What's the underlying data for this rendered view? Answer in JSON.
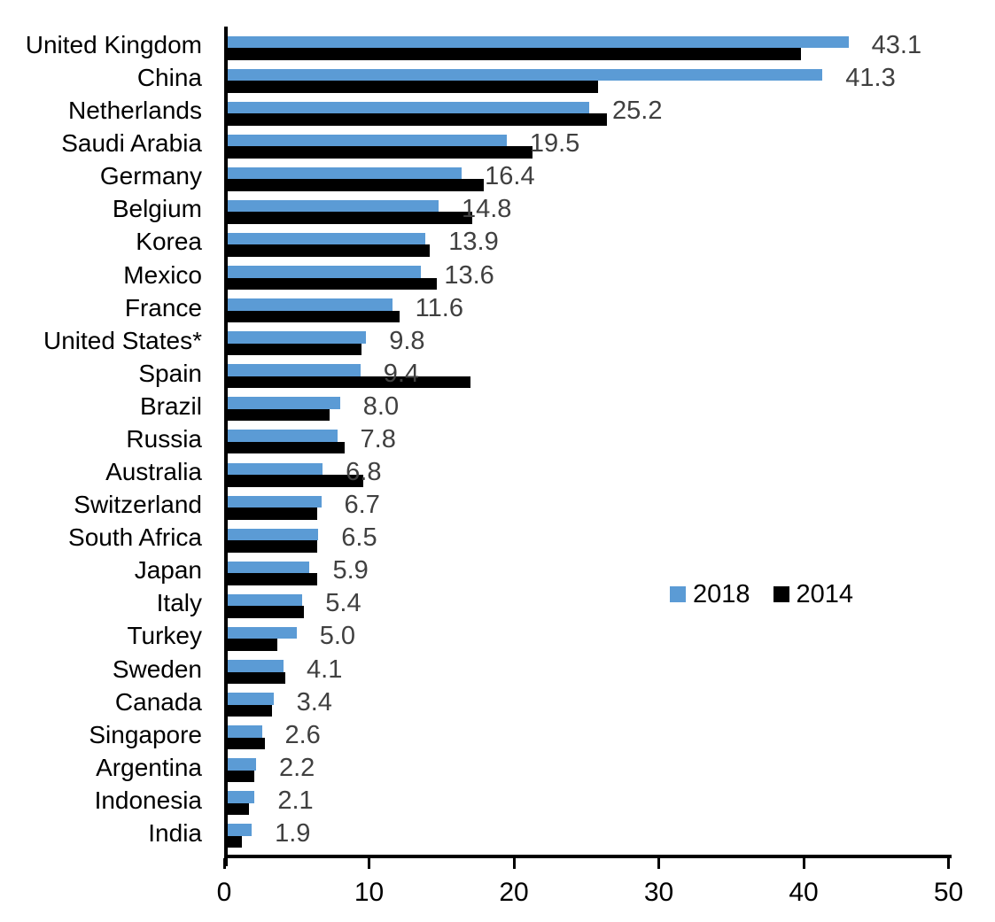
{
  "chart_data": {
    "type": "bar",
    "orientation": "horizontal",
    "title": "",
    "xlabel": "",
    "ylabel": "",
    "xlim": [
      0,
      50
    ],
    "x_ticks": [
      "0",
      "10",
      "20",
      "30",
      "40",
      "50"
    ],
    "grid": false,
    "legend_position": "middle-right",
    "categories": [
      "United Kingdom",
      "China",
      "Netherlands",
      "Saudi Arabia",
      "Germany",
      "Belgium",
      "Korea",
      "Mexico",
      "France",
      "United States*",
      "Spain",
      "Brazil",
      "Russia",
      "Australia",
      "Switzerland",
      "South Africa",
      "Japan",
      "Italy",
      "Turkey",
      "Sweden",
      "Canada",
      "Singapore",
      "Argentina",
      "Indonesia",
      "India"
    ],
    "series": [
      {
        "name": "2018",
        "color": "#5B9BD5",
        "values": [
          43.1,
          41.3,
          25.2,
          19.5,
          16.4,
          14.8,
          13.9,
          13.6,
          11.6,
          9.8,
          9.4,
          8.0,
          7.8,
          6.8,
          6.7,
          6.5,
          5.9,
          5.4,
          5.0,
          4.1,
          3.4,
          2.6,
          2.2,
          2.1,
          1.9
        ]
      },
      {
        "name": "2014",
        "color": "#000000",
        "values": [
          39.8,
          25.8,
          26.4,
          21.3,
          17.9,
          17.1,
          14.2,
          14.7,
          12.1,
          9.5,
          17.0,
          7.3,
          8.3,
          9.6,
          6.4,
          6.4,
          6.4,
          5.5,
          3.7,
          4.2,
          3.3,
          2.8,
          2.1,
          1.7,
          1.2
        ]
      }
    ],
    "value_labels_series": "2018",
    "value_labels": [
      "43.1",
      "41.3",
      "25.2",
      "19.5",
      "16.4",
      "14.8",
      "13.9",
      "13.6",
      "11.6",
      "9.8",
      "9.4",
      "8.0",
      "7.8",
      "6.8",
      "6.7",
      "6.5",
      "5.9",
      "5.4",
      "5.0",
      "4.1",
      "3.4",
      "2.6",
      "2.2",
      "2.1",
      "1.9"
    ],
    "value_label_color": "#404040",
    "axis_color": "#000000",
    "text_color": "#000000"
  },
  "legend": {
    "items": [
      {
        "label": "2018",
        "color": "#5B9BD5"
      },
      {
        "label": "2014",
        "color": "#000000"
      }
    ]
  }
}
